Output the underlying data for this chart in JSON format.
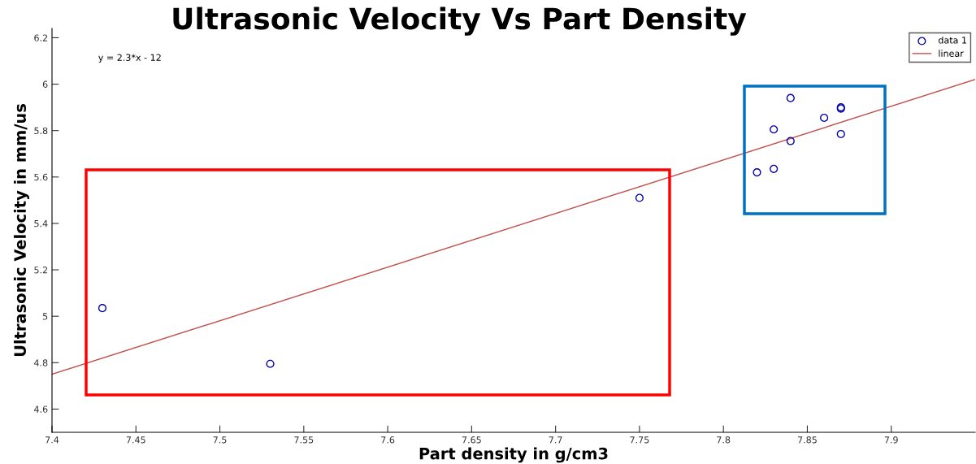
{
  "chart_data": {
    "type": "scatter",
    "title": "Ultrasonic Velocity Vs Part Density",
    "xlabel": "Part density in g/cm3",
    "ylabel": "Ultrasonic Velocity in mm/us",
    "xlim": [
      7.4,
      7.95
    ],
    "xticks": [
      {
        "value": 7.4,
        "label": "7.4"
      },
      {
        "value": 7.45,
        "label": "7.45"
      },
      {
        "value": 7.5,
        "label": "7.5"
      },
      {
        "value": 7.55,
        "label": "7.55"
      },
      {
        "value": 7.6,
        "label": "7.6"
      },
      {
        "value": 7.65,
        "label": "7.65"
      },
      {
        "value": 7.7,
        "label": "7.7"
      },
      {
        "value": 7.75,
        "label": "7.75"
      },
      {
        "value": 7.8,
        "label": "7.8"
      },
      {
        "value": 7.85,
        "label": "7.85"
      },
      {
        "value": 7.9,
        "label": "7.9"
      }
    ],
    "ylim": [
      4.5,
      6.24
    ],
    "yticks": [
      {
        "value": 4.6,
        "label": "4.6"
      },
      {
        "value": 4.8,
        "label": "4.8"
      },
      {
        "value": 5,
        "label": "5"
      },
      {
        "value": 5.2,
        "label": "5.2"
      },
      {
        "value": 5.4,
        "label": "5.4"
      },
      {
        "value": 5.6,
        "label": "5.6"
      },
      {
        "value": 5.8,
        "label": "5.8"
      },
      {
        "value": 6,
        "label": "6"
      },
      {
        "value": 6.2,
        "label": "6.2"
      }
    ],
    "series": [
      {
        "name": "data 1",
        "color": "#0000aa",
        "marker": "circle",
        "x": [
          7.43,
          7.53,
          7.75,
          7.82,
          7.83,
          7.83,
          7.84,
          7.84,
          7.86,
          7.87,
          7.87,
          7.87
        ],
        "values": [
          5.035,
          4.795,
          5.51,
          5.62,
          5.635,
          5.805,
          5.755,
          5.94,
          5.855,
          5.895,
          5.9,
          5.785
        ]
      },
      {
        "name": "linear",
        "type": "line",
        "color": "#c0504d",
        "x": [
          7.4,
          7.95
        ],
        "values": [
          4.75,
          6.02
        ]
      }
    ],
    "annotations": [
      "y = 2.3*x - 12"
    ],
    "legend": "top right",
    "grid": false
  }
}
